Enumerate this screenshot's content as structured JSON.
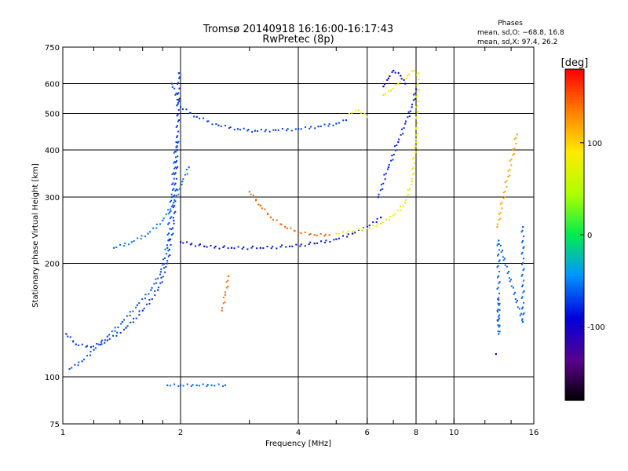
{
  "chart_data": {
    "type": "scatter",
    "title": "Tromsø 20140918 16:16:00-16:17:43",
    "subtitle": "RwPretec (8p)",
    "xlabel": "Frequency [MHz]",
    "ylabel": "Stationary phase Virtual Height [km]",
    "x_scale": "log",
    "y_scale": "log",
    "xlim": [
      1,
      16
    ],
    "ylim": [
      75,
      750
    ],
    "x_ticks": [
      1,
      2,
      4,
      6,
      8,
      10,
      16
    ],
    "x_grid": [
      2,
      4,
      6,
      8,
      10
    ],
    "y_ticks": [
      75,
      100,
      200,
      300,
      400,
      500,
      600,
      750
    ],
    "y_grid": [
      100,
      200,
      300,
      400,
      500,
      600
    ],
    "grid": true,
    "stats": {
      "header": "Phases",
      "line1": "mean, sd,O: −68.8, 16.8",
      "line2": "mean, sd,X:  97.4, 26.2"
    },
    "colorbar": {
      "label": "[deg]",
      "min": -180,
      "max": 180,
      "ticks": [
        -100,
        0,
        100
      ],
      "colormap": "rainbow"
    },
    "traces": [
      {
        "phase": -65,
        "x": [
          1.04,
          1.12,
          1.2,
          1.3,
          1.42,
          1.55,
          1.68,
          1.78,
          1.85,
          1.9,
          1.95
        ],
        "y": [
          105,
          110,
          118,
          128,
          140,
          155,
          170,
          190,
          220,
          300,
          420
        ]
      },
      {
        "phase": -75,
        "x": [
          1.02,
          1.08,
          1.18,
          1.3,
          1.45,
          1.6,
          1.75,
          1.85,
          1.92,
          1.96,
          1.98
        ],
        "y": [
          130,
          122,
          120,
          125,
          135,
          150,
          170,
          200,
          260,
          400,
          640
        ]
      },
      {
        "phase": -55,
        "x": [
          1.35,
          1.5,
          1.65,
          1.8,
          1.92,
          2.02,
          2.1
        ],
        "y": [
          220,
          228,
          240,
          260,
          290,
          330,
          360
        ]
      },
      {
        "phase": -70,
        "x": [
          1.9,
          2.0,
          2.2,
          2.5,
          2.8,
          3.1,
          3.5,
          4.0,
          4.5,
          5.0,
          5.3
        ],
        "y": [
          600,
          520,
          490,
          465,
          455,
          450,
          452,
          455,
          462,
          470,
          480
        ]
      },
      {
        "phase": -85,
        "x": [
          2.0,
          2.3,
          2.7,
          3.2,
          3.8,
          4.4,
          5.0,
          5.5,
          6.0,
          6.5
        ],
        "y": [
          228,
          222,
          220,
          220,
          222,
          226,
          232,
          240,
          250,
          265
        ]
      },
      {
        "phase": -80,
        "x": [
          6.4,
          6.8,
          7.2,
          7.5,
          7.8,
          8.0
        ],
        "y": [
          300,
          360,
          420,
          470,
          520,
          580
        ]
      },
      {
        "phase": -90,
        "x": [
          6.6,
          6.8,
          7.0,
          7.3,
          7.5
        ],
        "y": [
          590,
          620,
          650,
          630,
          600
        ]
      },
      {
        "phase": 145,
        "x": [
          3.0,
          3.2,
          3.4,
          3.7,
          4.0,
          4.4,
          4.8
        ],
        "y": [
          310,
          285,
          265,
          250,
          242,
          238,
          238
        ]
      },
      {
        "phase": 80,
        "x": [
          5.0,
          5.5,
          6.0,
          6.5,
          7.0,
          7.5,
          7.8,
          8.0,
          8.1
        ],
        "y": [
          240,
          243,
          248,
          255,
          268,
          290,
          330,
          420,
          640
        ]
      },
      {
        "phase": 90,
        "x": [
          5.4,
          5.7,
          6.0
        ],
        "y": [
          500,
          510,
          490
        ]
      },
      {
        "phase": 95,
        "x": [
          6.6,
          6.9,
          7.2,
          7.6,
          7.9
        ],
        "y": [
          560,
          575,
          600,
          630,
          650
        ]
      },
      {
        "phase": -60,
        "x": [
          1.85,
          2.0,
          2.2,
          2.4,
          2.6
        ],
        "y": [
          95,
          95,
          95,
          95,
          95
        ]
      },
      {
        "phase": 140,
        "x": [
          2.55,
          2.6,
          2.65
        ],
        "y": [
          150,
          165,
          185
        ]
      },
      {
        "phase": -60,
        "x": [
          13,
          13,
          13,
          15,
          15
        ],
        "y": [
          160,
          130,
          230,
          140,
          250
        ]
      },
      {
        "phase": -110,
        "x": [
          12.8
        ],
        "y": [
          115
        ]
      },
      {
        "phase": 120,
        "x": [
          12.9,
          14.5
        ],
        "y": [
          250,
          440
        ]
      }
    ]
  }
}
